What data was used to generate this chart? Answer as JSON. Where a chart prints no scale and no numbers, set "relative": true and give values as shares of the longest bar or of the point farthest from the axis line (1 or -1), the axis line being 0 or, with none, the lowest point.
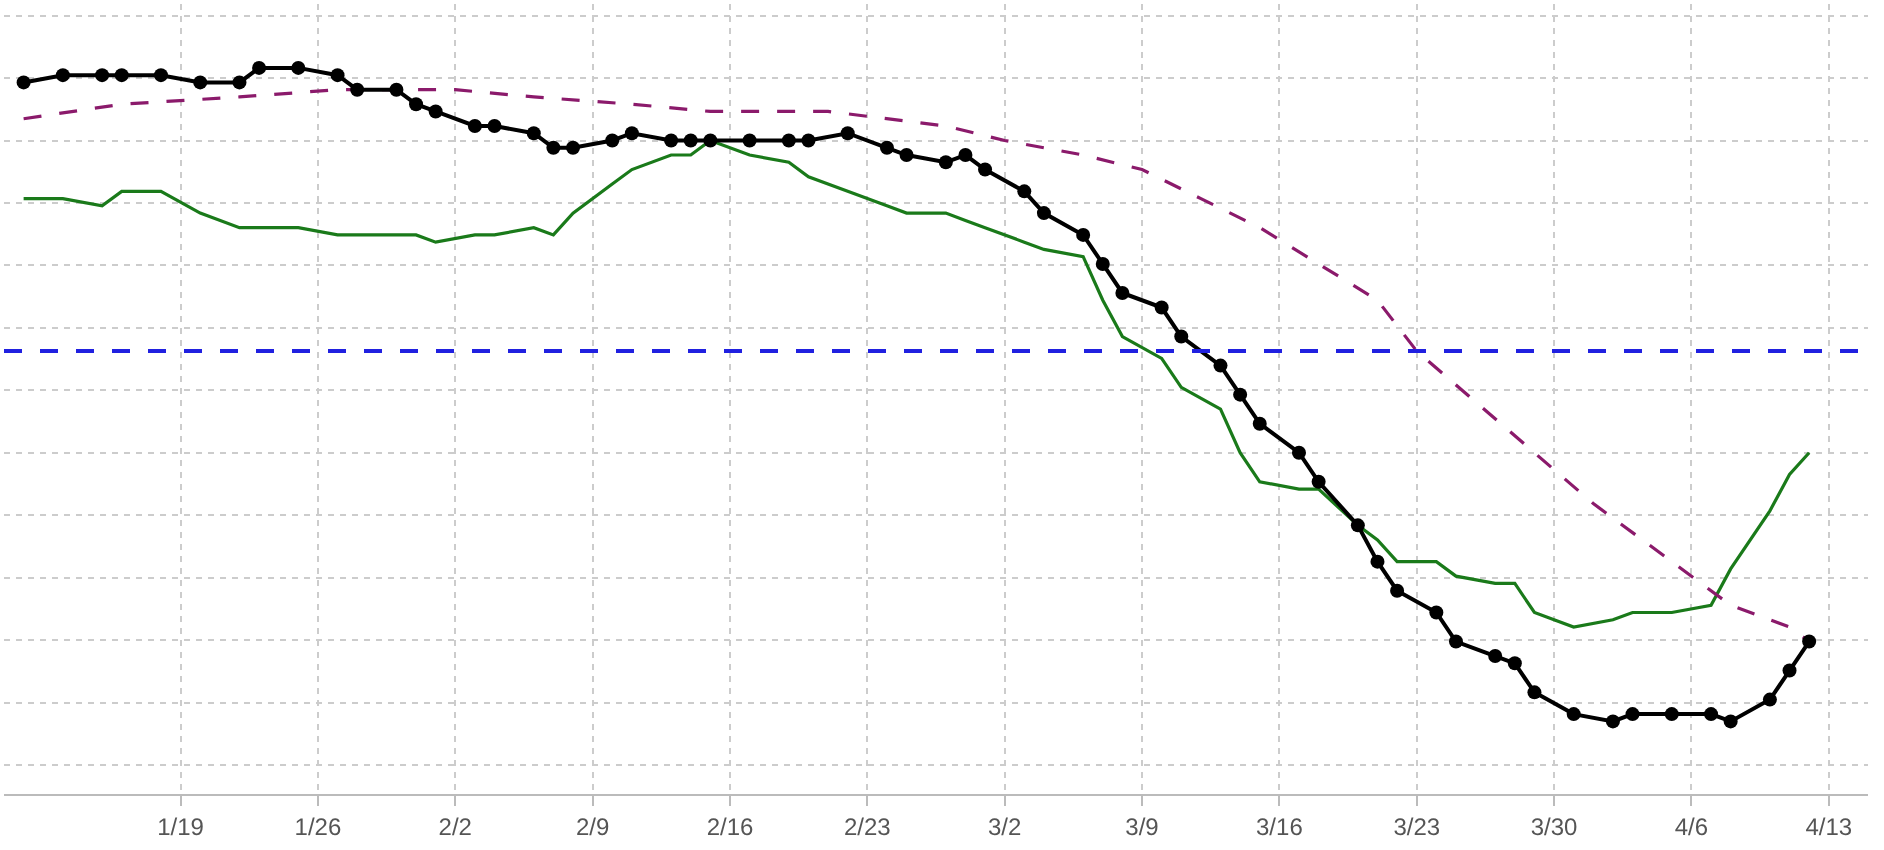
{
  "chart_data": {
    "type": "line",
    "relative": true,
    "tick_labels": "x",
    "grid": true,
    "x": [
      "--01-11",
      "--01-13",
      "--01-15",
      "--01-16",
      "--01-18",
      "--01-20",
      "--01-22",
      "--01-23",
      "--01-25",
      "--01-27",
      "--01-28",
      "--01-30",
      "--01-31",
      "--02-01",
      "--02-03",
      "--02-04",
      "--02-06",
      "--02-07",
      "--02-08",
      "--02-10",
      "--02-11",
      "--02-13",
      "--02-14",
      "--02-15",
      "--02-17",
      "--02-19",
      "--02-20",
      "--02-22",
      "--02-24",
      "--02-25",
      "--02-27",
      "--02-28",
      "--03-01",
      "--03-03",
      "--03-04",
      "--03-06",
      "--03-07",
      "--03-08",
      "--03-10",
      "--03-11",
      "--03-13",
      "--03-14",
      "--03-15",
      "--03-17",
      "--03-18",
      "--03-20",
      "--03-21",
      "--03-22",
      "--03-24",
      "--03-25",
      "--03-27",
      "--03-28",
      "--03-29",
      "--03-31",
      "--04-02",
      "--04-03",
      "--04-05",
      "--04-07",
      "--04-08",
      "--04-10",
      "--04-11",
      "--04-12"
    ],
    "xlim": [
      "--01-10",
      "--04-15"
    ],
    "xticks": [
      {
        "value": "--01-19",
        "label": "1/19"
      },
      {
        "value": "--01-26",
        "label": "1/26"
      },
      {
        "value": "--02-02",
        "label": "2/2"
      },
      {
        "value": "--02-09",
        "label": "2/9"
      },
      {
        "value": "--02-16",
        "label": "2/16"
      },
      {
        "value": "--02-23",
        "label": "2/23"
      },
      {
        "value": "--03-02",
        "label": "3/2"
      },
      {
        "value": "--03-09",
        "label": "3/9"
      },
      {
        "value": "--03-16",
        "label": "3/16"
      },
      {
        "value": "--03-23",
        "label": "3/23"
      },
      {
        "value": "--03-30",
        "label": "3/30"
      },
      {
        "value": "--04-06",
        "label": "4/6"
      },
      {
        "value": "--04-13",
        "label": "4/13"
      }
    ],
    "series": [
      {
        "color": "#1a7a1a",
        "marker": "none",
        "line_style": "solid",
        "values": [
          0.82,
          0.82,
          0.81,
          0.83,
          0.83,
          0.8,
          0.78,
          0.78,
          0.78,
          0.77,
          0.77,
          0.77,
          0.77,
          0.76,
          0.77,
          0.77,
          0.78,
          0.77,
          0.8,
          0.84,
          0.86,
          0.88,
          0.88,
          0.9,
          0.88,
          0.87,
          0.85,
          0.83,
          0.81,
          0.8,
          0.8,
          0.79,
          0.78,
          0.76,
          0.75,
          0.74,
          0.68,
          0.63,
          0.6,
          0.56,
          0.53,
          0.47,
          0.43,
          0.42,
          0.42,
          0.37,
          0.35,
          0.32,
          0.32,
          0.3,
          0.29,
          0.29,
          0.25,
          0.23,
          0.24,
          0.25,
          0.25,
          0.26,
          0.31,
          0.39,
          0.44,
          0.47
        ]
      },
      {
        "color": "#8b1a6b",
        "marker": "none",
        "line_style": "dashed",
        "x": [
          "--01-11",
          "--01-16",
          "--01-22",
          "--01-27",
          "--01-30",
          "--02-02",
          "--02-06",
          "--02-11",
          "--02-15",
          "--02-21",
          "--02-27",
          "--03-02",
          "--03-06",
          "--03-09",
          "--03-12",
          "--03-15",
          "--03-18",
          "--03-21",
          "--03-23",
          "--03-26",
          "--03-29",
          "--04-01",
          "--04-05",
          "--04-08",
          "--04-11",
          "--04-12"
        ],
        "values": [
          0.93,
          0.95,
          0.96,
          0.97,
          0.97,
          0.97,
          0.96,
          0.95,
          0.94,
          0.94,
          0.92,
          0.9,
          0.88,
          0.86,
          0.82,
          0.78,
          0.73,
          0.68,
          0.61,
          0.54,
          0.47,
          0.4,
          0.32,
          0.26,
          0.23,
          0.21
        ]
      },
      {
        "color": "#000000",
        "marker": "circle",
        "line_style": "solid",
        "values": [
          0.98,
          0.99,
          0.99,
          0.99,
          0.99,
          0.98,
          0.98,
          1.0,
          1.0,
          0.99,
          0.97,
          0.97,
          0.95,
          0.94,
          0.92,
          0.92,
          0.91,
          0.89,
          0.89,
          0.9,
          0.91,
          0.9,
          0.9,
          0.9,
          0.9,
          0.9,
          0.9,
          0.91,
          0.89,
          0.88,
          0.87,
          0.88,
          0.86,
          0.83,
          0.8,
          0.77,
          0.73,
          0.69,
          0.67,
          0.63,
          0.59,
          0.55,
          0.51,
          0.47,
          0.43,
          0.37,
          0.32,
          0.28,
          0.25,
          0.21,
          0.19,
          0.18,
          0.14,
          0.11,
          0.1,
          0.11,
          0.11,
          0.11,
          0.1,
          0.13,
          0.17,
          0.21
        ]
      }
    ],
    "ref_lines": [
      {
        "axis": "y",
        "value": 0.61,
        "color": "#2020e0",
        "line_style": "dashed"
      }
    ]
  }
}
